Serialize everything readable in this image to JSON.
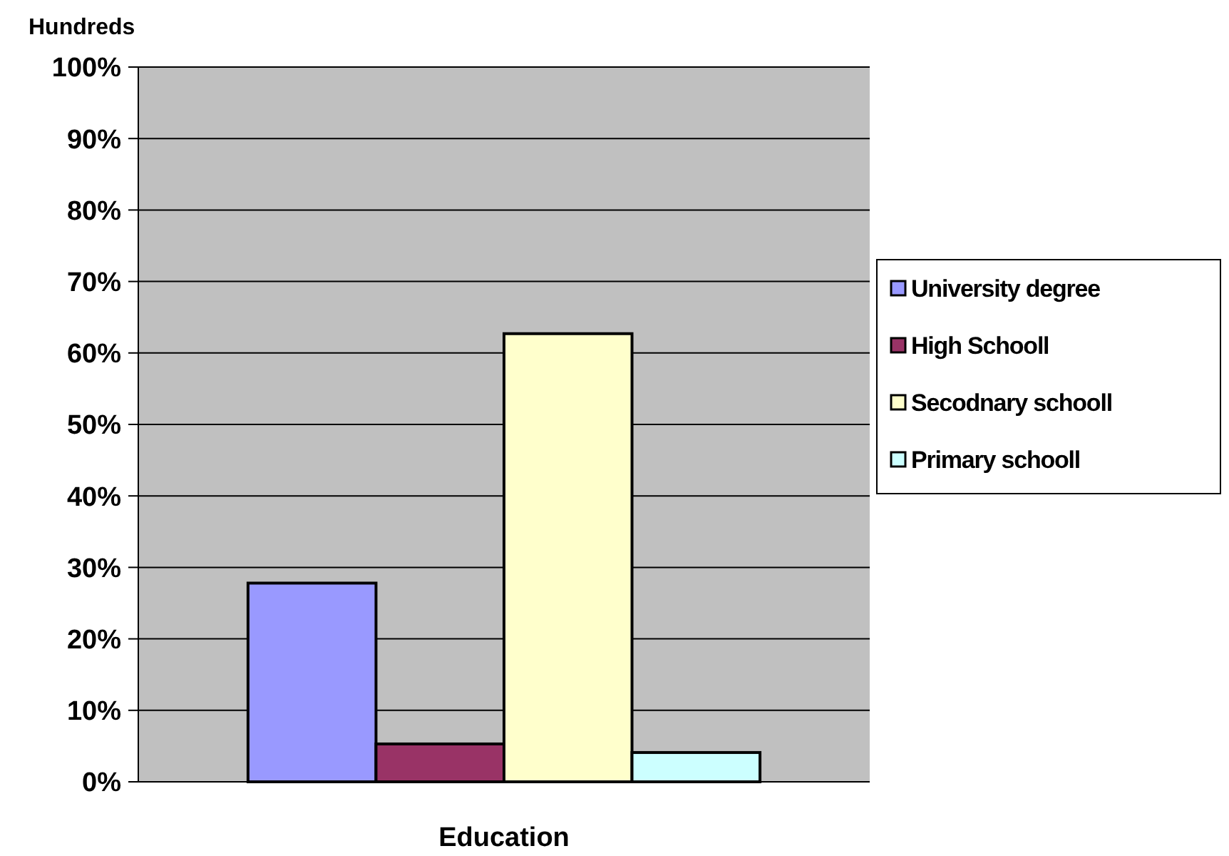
{
  "chart_data": {
    "type": "bar",
    "ylabel": "Hundreds",
    "categories": [
      "Education"
    ],
    "series": [
      {
        "name": "University degree",
        "color": "#9999ff",
        "values": [
          27.8
        ]
      },
      {
        "name": "High Schooll",
        "color": "#993366",
        "values": [
          5.3
        ]
      },
      {
        "name": "Secodnary schooll",
        "color": "#ffffcc",
        "values": [
          62.7
        ]
      },
      {
        "name": "Primary schooll",
        "color": "#ccffff",
        "values": [
          4.1
        ]
      }
    ],
    "ylim": [
      0,
      100
    ],
    "yticks": [
      {
        "value": 0,
        "label": "0%"
      },
      {
        "value": 10,
        "label": "10%"
      },
      {
        "value": 20,
        "label": "20%"
      },
      {
        "value": 30,
        "label": "30%"
      },
      {
        "value": 40,
        "label": "40%"
      },
      {
        "value": 50,
        "label": "50%"
      },
      {
        "value": 60,
        "label": "60%"
      },
      {
        "value": 70,
        "label": "70%"
      },
      {
        "value": 80,
        "label": "80%"
      },
      {
        "value": 90,
        "label": "90%"
      },
      {
        "value": 100,
        "label": "100%"
      }
    ],
    "grid": "y",
    "legend": "right"
  }
}
